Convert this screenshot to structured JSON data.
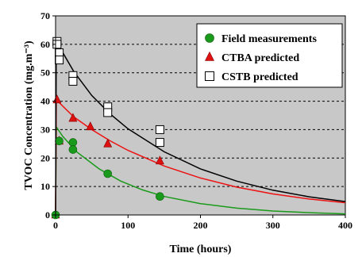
{
  "chart_data": {
    "type": "scatter",
    "title": "",
    "xlabel": "Time (hours)",
    "ylabel": "TVOC Concentration (mg.m⁻³)",
    "xlim": [
      0,
      400
    ],
    "ylim": [
      0,
      70
    ],
    "x_ticks": [
      0,
      100,
      200,
      300,
      400
    ],
    "y_ticks": [
      0,
      10,
      20,
      30,
      40,
      50,
      60,
      70
    ],
    "grid": "horizontal dashed",
    "legend_position": "top-right",
    "plot_background": "#c8c8c8",
    "series": [
      {
        "name": "Field measurements",
        "marker": "circle",
        "color": "#1a9a1a",
        "points": [
          [
            0,
            0
          ],
          [
            5,
            26
          ],
          [
            24,
            25.5
          ],
          [
            24,
            23
          ],
          [
            72,
            14.5
          ],
          [
            144,
            6.5
          ]
        ],
        "curve": [
          [
            0,
            0
          ],
          [
            1,
            31
          ],
          [
            10,
            27.6
          ],
          [
            30,
            22
          ],
          [
            60,
            16.2
          ],
          [
            90,
            11.9
          ],
          [
            120,
            8.8
          ],
          [
            150,
            6.5
          ],
          [
            200,
            4.0
          ],
          [
            250,
            2.4
          ],
          [
            300,
            1.4
          ],
          [
            350,
            0.8
          ],
          [
            400,
            0.4
          ]
        ]
      },
      {
        "name": "CTBA predicted",
        "marker": "triangle",
        "color": "#dd1111",
        "points": [
          [
            0,
            0
          ],
          [
            2,
            40.5
          ],
          [
            5,
            26
          ],
          [
            24,
            34
          ],
          [
            48,
            31
          ],
          [
            72,
            25
          ],
          [
            144,
            19
          ]
        ],
        "curve": [
          [
            0,
            0
          ],
          [
            1,
            40.5
          ],
          [
            25,
            34.5
          ],
          [
            50,
            30.0
          ],
          [
            75,
            26.1
          ],
          [
            100,
            22.7
          ],
          [
            150,
            17.2
          ],
          [
            200,
            13.0
          ],
          [
            250,
            9.8
          ],
          [
            300,
            7.4
          ],
          [
            350,
            5.6
          ],
          [
            400,
            4.3
          ]
        ]
      },
      {
        "name": "CSTB predicted",
        "marker": "square",
        "color": "#ffffff",
        "points": [
          [
            2,
            61
          ],
          [
            2,
            60
          ],
          [
            5,
            57
          ],
          [
            5,
            54.5
          ],
          [
            24,
            49
          ],
          [
            24,
            47
          ],
          [
            72,
            38
          ],
          [
            72,
            36
          ],
          [
            144,
            30
          ],
          [
            144,
            25.5
          ]
        ],
        "curve": [
          [
            0,
            0
          ],
          [
            1,
            61
          ],
          [
            25,
            50.5
          ],
          [
            50,
            42.0
          ],
          [
            75,
            35.6
          ],
          [
            100,
            30.3
          ],
          [
            150,
            22.2
          ],
          [
            200,
            16.2
          ],
          [
            250,
            11.9
          ],
          [
            300,
            8.7
          ],
          [
            350,
            6.4
          ],
          [
            400,
            4.7
          ]
        ]
      }
    ]
  }
}
